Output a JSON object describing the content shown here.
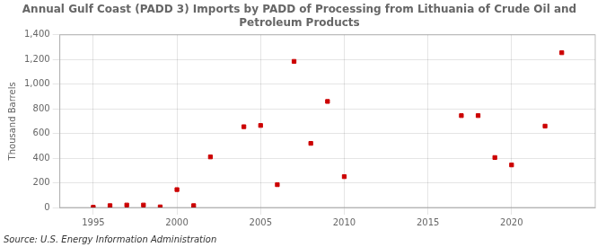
{
  "chart_data": {
    "type": "scatter",
    "title": "Annual Gulf Coast (PADD 3) Imports by PADD of Processing from Lithuania of Crude Oil and\nPetroleum Products",
    "ylabel": "Thousand Barrels",
    "source": "Source: U.S. Energy Information Administration",
    "color": "#cc0000",
    "marker": "square",
    "x": [
      1995,
      1996,
      1997,
      1998,
      1999,
      2000,
      2001,
      2002,
      2004,
      2005,
      2006,
      2007,
      2008,
      2009,
      2010,
      2017,
      2018,
      2019,
      2020,
      2022,
      2023
    ],
    "values": [
      2,
      15,
      20,
      20,
      5,
      145,
      15,
      410,
      655,
      665,
      185,
      1185,
      520,
      860,
      250,
      745,
      745,
      405,
      345,
      660,
      1255
    ],
    "xlim": [
      1993,
      2025
    ],
    "ylim": [
      0,
      1400
    ],
    "xticks": [
      1995,
      2000,
      2005,
      2010,
      2015,
      2020
    ],
    "yticks": [
      0,
      200,
      400,
      600,
      800,
      {
        "value": 1000,
        "label": "1,000"
      },
      {
        "value": 1200,
        "label": "1,200"
      },
      {
        "value": 1400,
        "label": "1,400"
      }
    ],
    "grid": true
  }
}
